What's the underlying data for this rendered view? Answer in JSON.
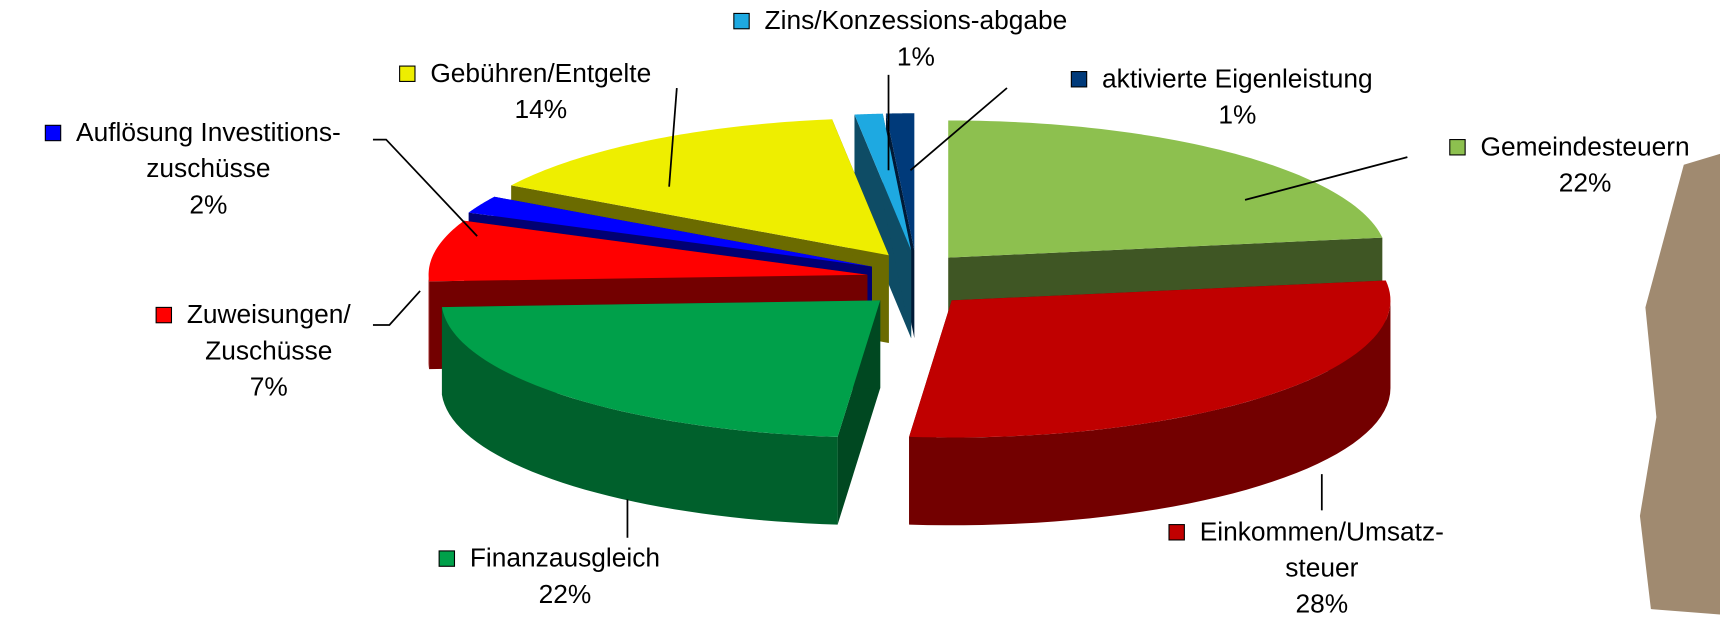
{
  "chart_data": {
    "type": "pie3d",
    "categories": [
      [
        "Gemeindesteuern"
      ],
      [
        "Einkommen/Umsatz-",
        "steuer"
      ],
      [
        "Finanzausgleich"
      ],
      [
        "Zuweisungen/",
        "Zuschüsse"
      ],
      [
        "Auflösung Investitions-",
        "zuschüsse"
      ],
      [
        "Gebühren/Entgelte"
      ],
      [
        "Zins/Konzessions-abgabe"
      ],
      [
        "aktivierte  Eigenleistung"
      ]
    ],
    "values": [
      22,
      28,
      22,
      7,
      2,
      14,
      1,
      1
    ],
    "value_labels": [
      "22%",
      "28%",
      "22%",
      "7%",
      "2%",
      "14%",
      "1%",
      "1%"
    ],
    "colors": [
      "#8dc04f",
      "#c00000",
      "#00a04a",
      "#ff0000",
      "#0000ff",
      "#eeee00",
      "#1ea9e1",
      "#003a7a"
    ]
  }
}
